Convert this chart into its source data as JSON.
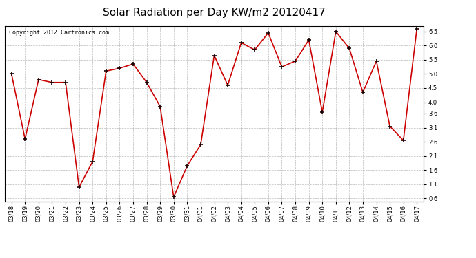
{
  "title": "Solar Radiation per Day KW/m2 20120417",
  "copyright": "Copyright 2012 Cartronics.com",
  "labels": [
    "03/18",
    "03/19",
    "03/20",
    "03/21",
    "03/22",
    "03/23",
    "03/24",
    "03/25",
    "03/26",
    "03/27",
    "03/28",
    "03/29",
    "03/30",
    "03/31",
    "04/01",
    "04/02",
    "04/03",
    "04/04",
    "04/05",
    "04/06",
    "04/07",
    "04/08",
    "04/09",
    "04/10",
    "04/11",
    "04/12",
    "04/13",
    "04/14",
    "04/15",
    "04/16",
    "04/17"
  ],
  "values": [
    5.0,
    2.7,
    4.8,
    4.7,
    4.7,
    1.0,
    1.9,
    5.1,
    5.2,
    5.35,
    4.7,
    3.85,
    0.65,
    1.75,
    2.5,
    5.65,
    4.6,
    6.1,
    5.85,
    6.45,
    5.25,
    5.45,
    6.2,
    3.65,
    6.5,
    5.9,
    4.35,
    5.45,
    3.15,
    2.65,
    6.6
  ],
  "yticks": [
    0.6,
    1.1,
    1.6,
    2.1,
    2.6,
    3.1,
    3.6,
    4.0,
    4.5,
    5.0,
    5.5,
    6.0,
    6.5
  ],
  "ymin": 0.5,
  "ymax": 6.7,
  "line_color": "#cc0000",
  "marker_color": "#1a0000",
  "bg_color": "#ffffff",
  "grid_color": "#aaaaaa",
  "title_fontsize": 11,
  "tick_fontsize": 6,
  "copyright_fontsize": 6
}
